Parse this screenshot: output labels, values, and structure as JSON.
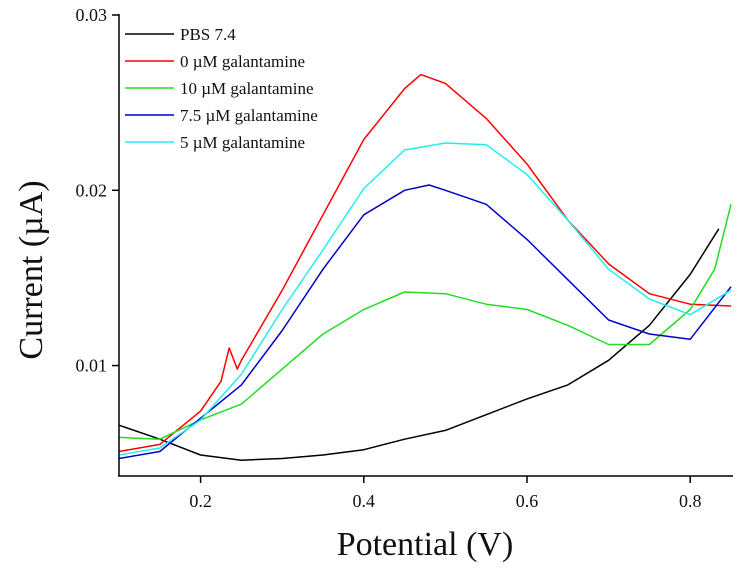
{
  "chart_data": {
    "type": "line",
    "title": "",
    "xlabel": "Potential (V)",
    "ylabel": "Current (µA)",
    "xlim": [
      0.1,
      0.85
    ],
    "ylim": [
      0.0037,
      0.03
    ],
    "xticks": [
      0.2,
      0.4,
      0.6,
      0.8
    ],
    "xtick_labels": [
      "0.2",
      "0.4",
      "0.6",
      "0.8"
    ],
    "yticks": [
      0.01,
      0.02,
      0.03
    ],
    "ytick_labels": [
      "0.01",
      "0.02",
      "0.03"
    ],
    "grid": false,
    "legend_position": "top-left",
    "series": [
      {
        "name": "PBS 7.4",
        "color": "#000000",
        "x": [
          0.1,
          0.15,
          0.2,
          0.25,
          0.3,
          0.35,
          0.4,
          0.45,
          0.5,
          0.55,
          0.6,
          0.65,
          0.7,
          0.75,
          0.8,
          0.835
        ],
        "y": [
          0.0066,
          0.0058,
          0.0049,
          0.0046,
          0.0047,
          0.0049,
          0.0052,
          0.0058,
          0.0063,
          0.0072,
          0.0081,
          0.0089,
          0.0103,
          0.0123,
          0.0152,
          0.0178
        ]
      },
      {
        "name": "0 µM galantamine",
        "color": "#ff0000",
        "x": [
          0.1,
          0.15,
          0.2,
          0.225,
          0.235,
          0.245,
          0.25,
          0.3,
          0.35,
          0.4,
          0.45,
          0.47,
          0.5,
          0.55,
          0.6,
          0.65,
          0.7,
          0.75,
          0.8,
          0.85
        ],
        "y": [
          0.0051,
          0.0055,
          0.0074,
          0.0091,
          0.011,
          0.0098,
          0.0103,
          0.0143,
          0.0186,
          0.0229,
          0.0258,
          0.0266,
          0.0261,
          0.0241,
          0.0215,
          0.0183,
          0.0158,
          0.0141,
          0.0135,
          0.0134
        ]
      },
      {
        "name": "10 µM galantamine",
        "color": "#22dd22",
        "x": [
          0.1,
          0.15,
          0.2,
          0.25,
          0.3,
          0.35,
          0.4,
          0.45,
          0.5,
          0.55,
          0.6,
          0.65,
          0.7,
          0.75,
          0.8,
          0.83,
          0.85
        ],
        "y": [
          0.0059,
          0.0058,
          0.0069,
          0.0078,
          0.0098,
          0.0118,
          0.0132,
          0.0142,
          0.0141,
          0.0135,
          0.0132,
          0.0123,
          0.0112,
          0.0112,
          0.0132,
          0.0155,
          0.0192
        ]
      },
      {
        "name": "7.5 µM galantamine",
        "color": "#0000cc",
        "x": [
          0.1,
          0.15,
          0.2,
          0.25,
          0.3,
          0.35,
          0.4,
          0.45,
          0.48,
          0.5,
          0.55,
          0.6,
          0.65,
          0.7,
          0.75,
          0.8,
          0.85
        ],
        "y": [
          0.0047,
          0.0051,
          0.007,
          0.0089,
          0.012,
          0.0155,
          0.0186,
          0.02,
          0.0203,
          0.02,
          0.0192,
          0.0172,
          0.0149,
          0.0126,
          0.0118,
          0.0115,
          0.0145
        ]
      },
      {
        "name": "5 µM galantamine",
        "color": "#22eeee",
        "x": [
          0.1,
          0.15,
          0.2,
          0.25,
          0.3,
          0.35,
          0.4,
          0.45,
          0.5,
          0.55,
          0.6,
          0.65,
          0.7,
          0.75,
          0.8,
          0.85
        ],
        "y": [
          0.0049,
          0.0053,
          0.0069,
          0.0095,
          0.0132,
          0.0166,
          0.0201,
          0.0223,
          0.0227,
          0.0226,
          0.0209,
          0.0183,
          0.0155,
          0.0138,
          0.0129,
          0.0143
        ]
      }
    ]
  }
}
